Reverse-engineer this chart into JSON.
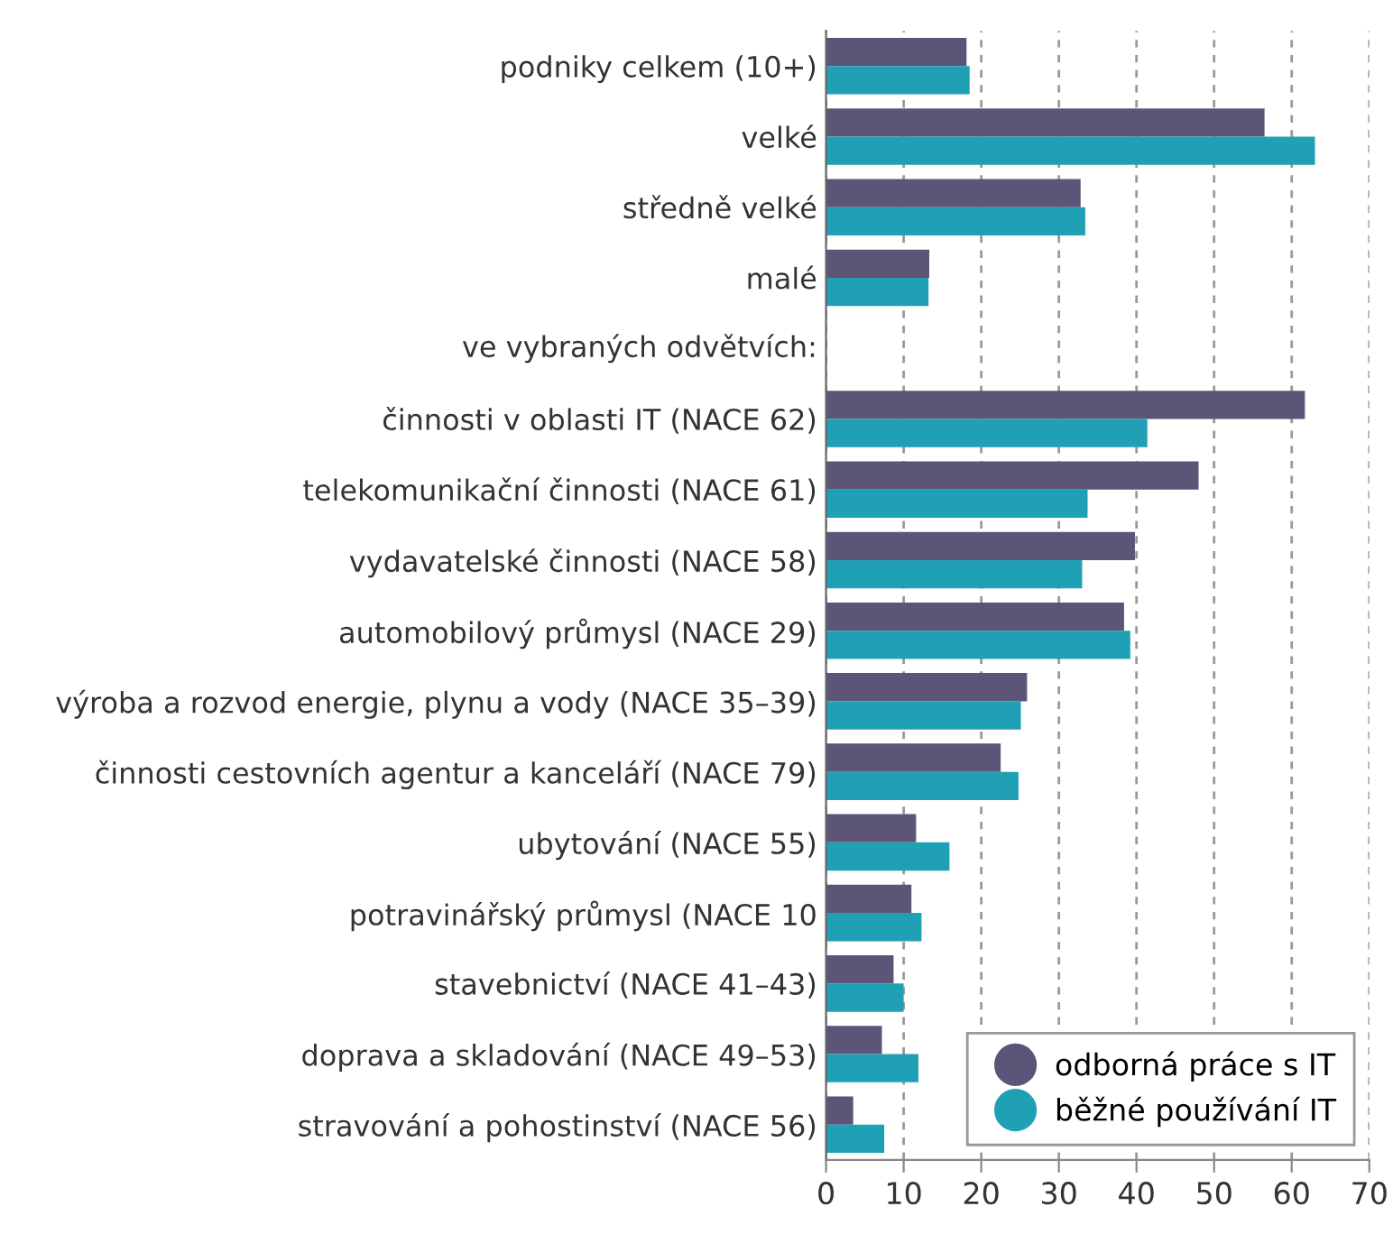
{
  "chart_data": {
    "type": "bar",
    "orientation": "horizontal",
    "categories": [
      "podniky celkem (10+)",
      "velké",
      "středně velké",
      "malé",
      null,
      "činnosti v oblasti IT (NACE 62)",
      "telekomunikační činnosti (NACE 61)",
      "vydavatelské činnosti (NACE 58)",
      "automobilový průmysl (NACE 29)",
      "výroba a rozvod energie, plynu a vody (NACE 35–39)",
      "činnosti cestovních agentur a kanceláří (NACE 79)",
      "ubytování (NACE 55)",
      "potravinářský průmysl (NACE 10",
      "stavebnictví (NACE 41–43)",
      "doprava a skladování (NACE 49–53)",
      "stravování a pohostinství (NACE 56)"
    ],
    "series": [
      {
        "name": "odborná práce s IT",
        "color": "#5c5577",
        "values": [
          18.1,
          56.5,
          32.8,
          13.3,
          null,
          61.7,
          48.0,
          39.8,
          38.4,
          25.9,
          22.5,
          11.6,
          11.0,
          8.7,
          7.2,
          3.5
        ]
      },
      {
        "name": "běžné používání IT",
        "color": "#20a0b5",
        "values": [
          18.5,
          63.0,
          33.4,
          13.2,
          null,
          41.4,
          33.7,
          33.0,
          39.2,
          25.1,
          24.8,
          15.9,
          12.3,
          10.0,
          11.9,
          7.5
        ]
      }
    ],
    "xlim": [
      0,
      70
    ],
    "xticks": [
      0,
      10,
      20,
      30,
      40,
      50,
      60,
      70
    ],
    "annotations": [
      "ve vybraných odvětvích:"
    ],
    "grid": "x",
    "legend": "bottom right"
  }
}
